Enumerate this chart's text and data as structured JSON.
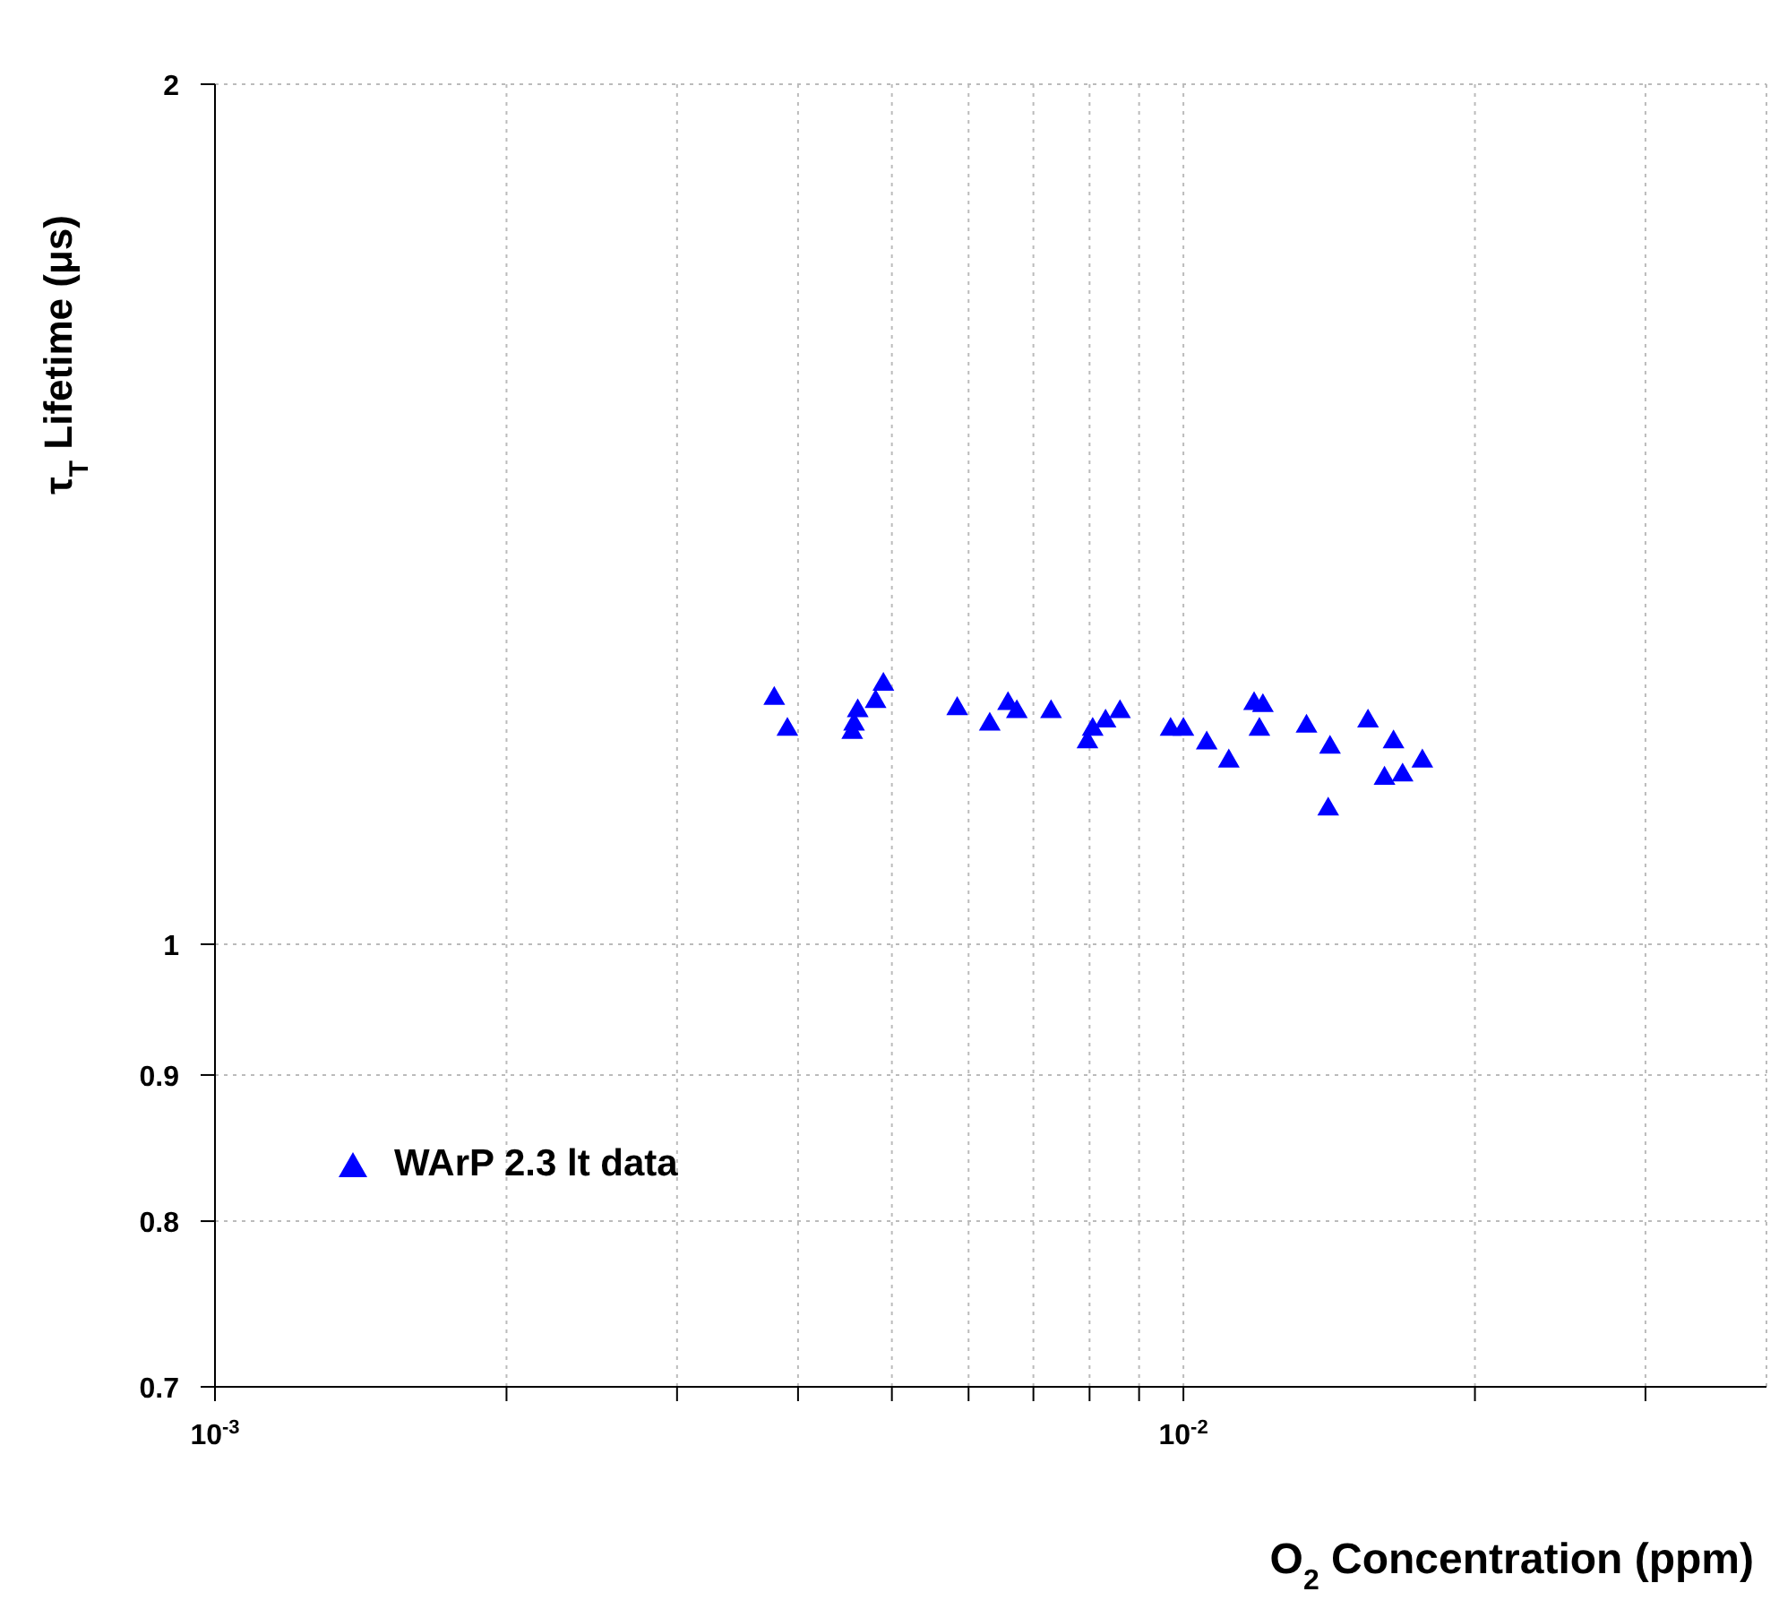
{
  "chart_data": {
    "type": "scatter",
    "xlabel": "O$_{2}$ Concentration (ppm)",
    "ylabel": "τ$_{T}$ Lifetime (μs)",
    "log": "xy",
    "grid": true,
    "legend": "bottom left",
    "marker": "triangle",
    "xlim": [
      0.001,
      0.04
    ],
    "ylim": [
      0.7,
      2
    ],
    "xticks": [
      {
        "value": 0.001,
        "label": "10$^{-3}$"
      },
      {
        "value": 0.002,
        "label": null
      },
      {
        "value": 0.003,
        "label": null
      },
      {
        "value": 0.004,
        "label": null
      },
      {
        "value": 0.005,
        "label": null
      },
      {
        "value": 0.006,
        "label": null
      },
      {
        "value": 0.007,
        "label": null
      },
      {
        "value": 0.008,
        "label": null
      },
      {
        "value": 0.009,
        "label": null
      },
      {
        "value": 0.01,
        "label": "10$^{-2}$"
      },
      {
        "value": 0.02,
        "label": null
      },
      {
        "value": 0.03,
        "label": null
      }
    ],
    "yticks": [
      0.7,
      0.8,
      0.9,
      1,
      2
    ],
    "series": [
      {
        "name": "WArP 2.3 lt data",
        "color": "#0000ff",
        "x": [
          0.00378,
          0.0039,
          0.00455,
          0.00457,
          0.00461,
          0.00481,
          0.0049,
          0.00584,
          0.00631,
          0.00659,
          0.00673,
          0.0073,
          0.00796,
          0.00806,
          0.00831,
          0.0086,
          0.0097,
          0.01,
          0.01057,
          0.01114,
          0.01183,
          0.01208,
          0.01198,
          0.0134,
          0.01417,
          0.01411,
          0.01551,
          0.01648,
          0.01613,
          0.01684,
          0.01765
        ],
        "values": [
          1.219,
          1.189,
          1.186,
          1.194,
          1.207,
          1.216,
          1.233,
          1.209,
          1.194,
          1.214,
          1.206,
          1.206,
          1.177,
          1.189,
          1.197,
          1.206,
          1.189,
          1.189,
          1.176,
          1.159,
          1.214,
          1.212,
          1.189,
          1.192,
          1.172,
          1.115,
          1.197,
          1.177,
          1.143,
          1.146,
          1.159
        ]
      }
    ]
  }
}
